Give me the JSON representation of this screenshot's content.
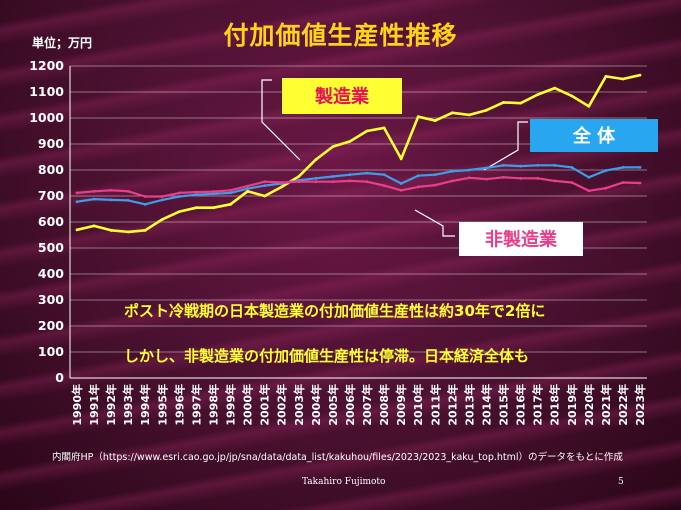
{
  "title": "付加価値生産性推移",
  "unit_label": "単位；万円",
  "notes": [
    "ポスト冷戦期の日本製造業の付加価値生産性は約30年で2倍に",
    "しかし、非製造業の付加価値生産性は停滞。日本経済全体も"
  ],
  "source": "内閣府HP（https://www.esri.cao.go.jp/jp/sna/data/data_list/kakuhou/files/2023/2023_kaku_top.html）のデータをもとに作成",
  "author": "Takahiro Fujimoto",
  "page_number": "5",
  "colors": {
    "title": "#ffd21a",
    "manufacturing": "#ffff33",
    "total": "#3b9ee8",
    "non_manufacturing": "#e83f8a",
    "grid": "#ffffff"
  },
  "chart_data": {
    "type": "line",
    "title": "付加価値生産性推移",
    "ylabel": "単位；万円",
    "ylim": [
      0,
      1200
    ],
    "yticks": [
      0,
      100,
      200,
      300,
      400,
      500,
      600,
      700,
      800,
      900,
      1000,
      1100,
      1200
    ],
    "grid": true,
    "categories": [
      "1990年",
      "1991年",
      "1992年",
      "1993年",
      "1994年",
      "1995年",
      "1996年",
      "1997年",
      "1998年",
      "1999年",
      "2000年",
      "2001年",
      "2002年",
      "2003年",
      "2004年",
      "2005年",
      "2006年",
      "2007年",
      "2008年",
      "2009年",
      "2010年",
      "2011年",
      "2012年",
      "2013年",
      "2014年",
      "2015年",
      "2016年",
      "2017年",
      "2018年",
      "2019年",
      "2020年",
      "2021年",
      "2022年",
      "2023年"
    ],
    "series": [
      {
        "name": "製造業",
        "key": "manufacturing",
        "values": [
          570,
          585,
          568,
          562,
          568,
          610,
          640,
          655,
          655,
          668,
          718,
          700,
          735,
          775,
          840,
          890,
          910,
          950,
          962,
          843,
          1005,
          990,
          1020,
          1012,
          1030,
          1060,
          1057,
          1090,
          1115,
          1085,
          1045,
          1160,
          1150,
          1165
        ]
      },
      {
        "name": "全 体",
        "key": "total",
        "values": [
          678,
          688,
          685,
          683,
          668,
          685,
          698,
          705,
          708,
          712,
          728,
          740,
          748,
          760,
          768,
          775,
          782,
          788,
          782,
          748,
          778,
          782,
          795,
          800,
          808,
          818,
          815,
          818,
          818,
          810,
          772,
          798,
          810,
          810
        ]
      },
      {
        "name": "非製造業",
        "key": "non_manufacturing",
        "values": [
          712,
          718,
          722,
          718,
          698,
          698,
          712,
          715,
          717,
          722,
          738,
          755,
          752,
          755,
          755,
          755,
          758,
          755,
          740,
          722,
          735,
          742,
          758,
          770,
          765,
          772,
          768,
          768,
          758,
          752,
          720,
          730,
          752,
          750
        ]
      }
    ],
    "legend_labels": [
      {
        "text": "製造業",
        "series": "manufacturing",
        "placement": "top-left"
      },
      {
        "text": "全 体",
        "series": "total",
        "placement": "top-right"
      },
      {
        "text": "非製造業",
        "series": "non_manufacturing",
        "placement": "middle-right"
      }
    ]
  }
}
